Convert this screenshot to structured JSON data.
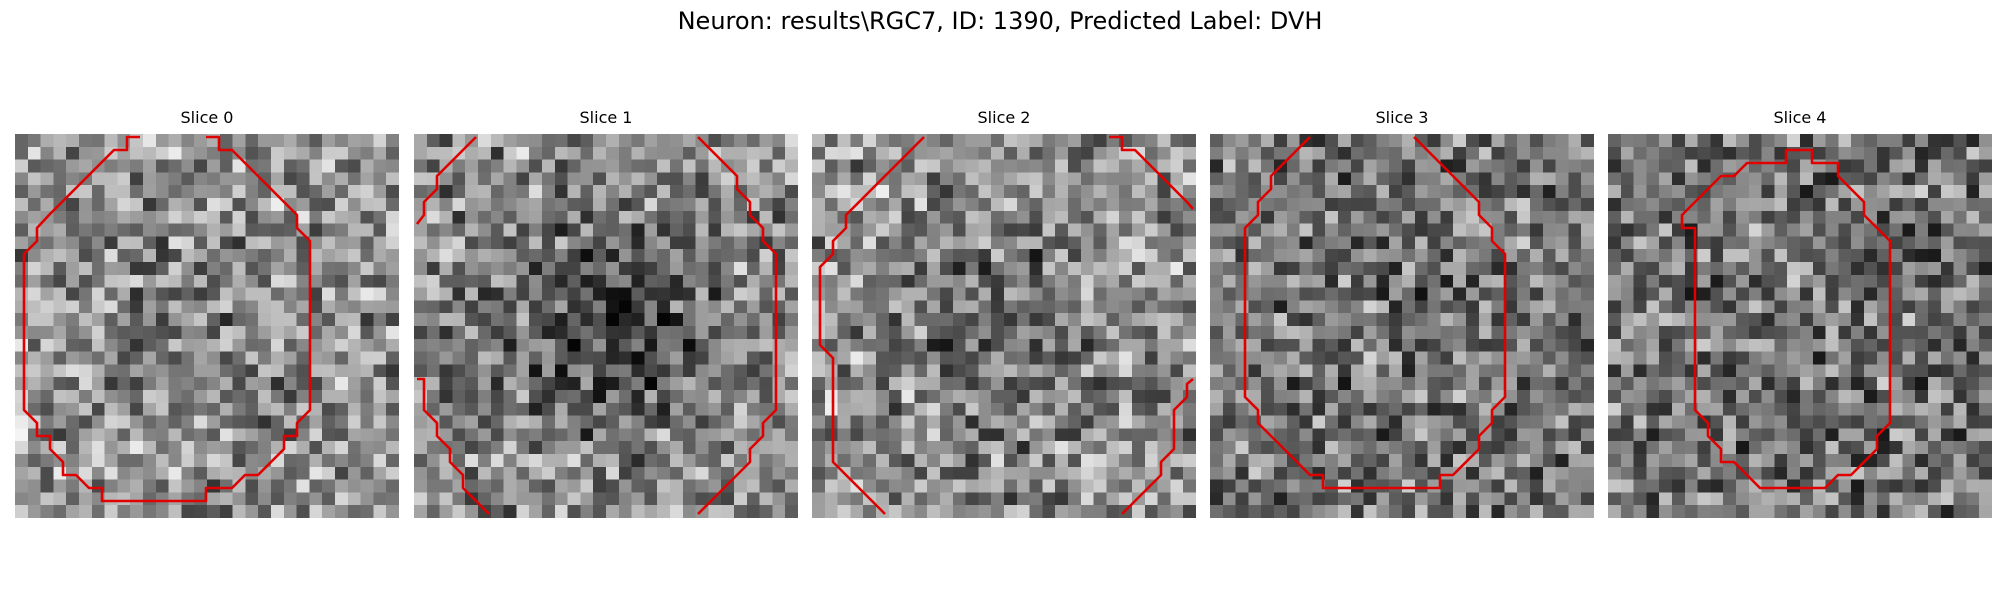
{
  "figure": {
    "suptitle": "Neuron: results\\RGC7, ID: 1390, Predicted Label: DVH",
    "contour_color": "#e00000",
    "colormap": "gray",
    "grid_size": 30,
    "panels": [
      {
        "title": "Slice 0",
        "mean_level": 0.58,
        "center_level": 0.48,
        "contour_kind": "closed-circle"
      },
      {
        "title": "Slice 1",
        "mean_level": 0.55,
        "center_level": 0.22,
        "contour_kind": "clipped-large-circle"
      },
      {
        "title": "Slice 2",
        "mean_level": 0.57,
        "center_level": 0.4,
        "contour_kind": "clipped-large-circle"
      },
      {
        "title": "Slice 3",
        "mean_level": 0.47,
        "center_level": 0.45,
        "contour_kind": "clipped-circle"
      },
      {
        "title": "Slice 4",
        "mean_level": 0.45,
        "center_level": 0.47,
        "contour_kind": "closed-circle"
      }
    ]
  }
}
